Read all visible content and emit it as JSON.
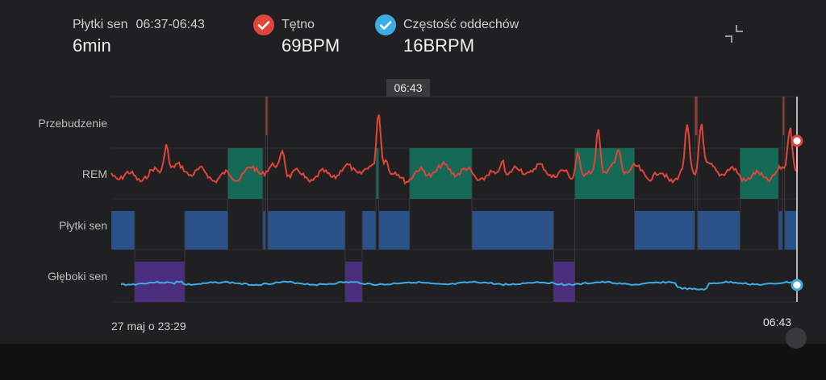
{
  "header": {
    "stage_name": "Płytki sen",
    "stage_time": "06:37-06:43",
    "stage_duration": "6min",
    "heart_rate_label": "Tętno",
    "heart_rate_value": "69BPM",
    "breathing_label": "Częstość oddechów",
    "breathing_value": "16BRPM"
  },
  "rows": {
    "awake": "Przebudzenie",
    "rem": "REM",
    "light": "Płytki sen",
    "deep": "Głęboki sen"
  },
  "cursor_time": "06:43",
  "time_start": "27 maj o 23:29",
  "time_end": "06:43",
  "colors": {
    "background": "#202022",
    "rem": "#156a56",
    "light": "#2a5288",
    "deep": "#4b2e7e",
    "heart_rate": "#e0443a",
    "breathing": "#3aaee4",
    "awake": "#a03a30",
    "check_heart": "#e0443a",
    "check_breath": "#3aaee4"
  },
  "icons": {
    "heart_check": "check-circle-icon",
    "breath_check": "check-circle-icon",
    "collapse": "collapse-icon"
  },
  "chart_data": {
    "type": "timeline",
    "stages": [
      "Przebudzenie",
      "REM",
      "Płytki sen",
      "Głęboki sen"
    ],
    "time_range": [
      "23:29",
      "06:43"
    ],
    "segments": [
      {
        "stage": "Płytki sen",
        "start": 0.0,
        "end": 0.034
      },
      {
        "stage": "Głęboki sen",
        "start": 0.034,
        "end": 0.107
      },
      {
        "stage": "Płytki sen",
        "start": 0.107,
        "end": 0.17
      },
      {
        "stage": "REM",
        "start": 0.17,
        "end": 0.221
      },
      {
        "stage": "Płytki sen",
        "start": 0.221,
        "end": 0.225
      },
      {
        "stage": "Przebudzenie",
        "start": 0.225,
        "end": 0.228
      },
      {
        "stage": "Płytki sen",
        "start": 0.228,
        "end": 0.341
      },
      {
        "stage": "Głęboki sen",
        "start": 0.341,
        "end": 0.366
      },
      {
        "stage": "Płytki sen",
        "start": 0.366,
        "end": 0.386
      },
      {
        "stage": "REM",
        "start": 0.386,
        "end": 0.39
      },
      {
        "stage": "Płytki sen",
        "start": 0.39,
        "end": 0.435
      },
      {
        "stage": "REM",
        "start": 0.435,
        "end": 0.526
      },
      {
        "stage": "Płytki sen",
        "start": 0.526,
        "end": 0.645
      },
      {
        "stage": "Głęboki sen",
        "start": 0.645,
        "end": 0.676
      },
      {
        "stage": "REM",
        "start": 0.676,
        "end": 0.763
      },
      {
        "stage": "Płytki sen",
        "start": 0.763,
        "end": 0.851
      },
      {
        "stage": "Przebudzenie",
        "start": 0.851,
        "end": 0.855
      },
      {
        "stage": "Płytki sen",
        "start": 0.855,
        "end": 0.917
      },
      {
        "stage": "REM",
        "start": 0.917,
        "end": 0.973
      },
      {
        "stage": "Płytki sen",
        "start": 0.973,
        "end": 0.979
      },
      {
        "stage": "Przebudzenie",
        "start": 0.979,
        "end": 0.982
      },
      {
        "stage": "Płytki sen",
        "start": 0.982,
        "end": 1.0
      }
    ],
    "heart_rate_series": "relative trace over REM band; ends at 69 BPM",
    "breathing_series": "relative trace over Głęboki sen band; ends at 16 BRPM"
  }
}
